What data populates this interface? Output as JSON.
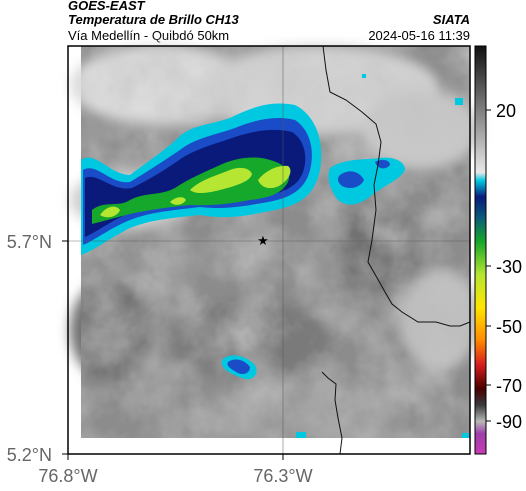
{
  "header": {
    "satellite": "GOES-EAST",
    "product": "Temperatura de Brillo CH13",
    "region": "Vía Medellín - Quibdó 50km",
    "source": "SIATA",
    "datetime": "2024-05-16 11:39"
  },
  "axes": {
    "lat_labels": [
      "5.7°N",
      "5.2°N"
    ],
    "lon_labels": [
      "76.8°W",
      "76.3°W"
    ]
  },
  "colorbar": {
    "tick_labels": [
      "20",
      "-30",
      "-50",
      "-70",
      "-90"
    ],
    "colors": [
      "#1a1a1a",
      "#7a7a7a",
      "#d8d8d8",
      "#00c8e0",
      "#0a1a7a",
      "#16a82a",
      "#b4e632",
      "#ffe600",
      "#ff8c00",
      "#d81e1e",
      "#4a0000",
      "#9e9e9e",
      "#c83cb4"
    ]
  },
  "map": {
    "marker_icon": "star-icon",
    "features": [
      "gray cloud field",
      "convective cold-top band",
      "isolated cell",
      "colombia boundary line"
    ]
  }
}
